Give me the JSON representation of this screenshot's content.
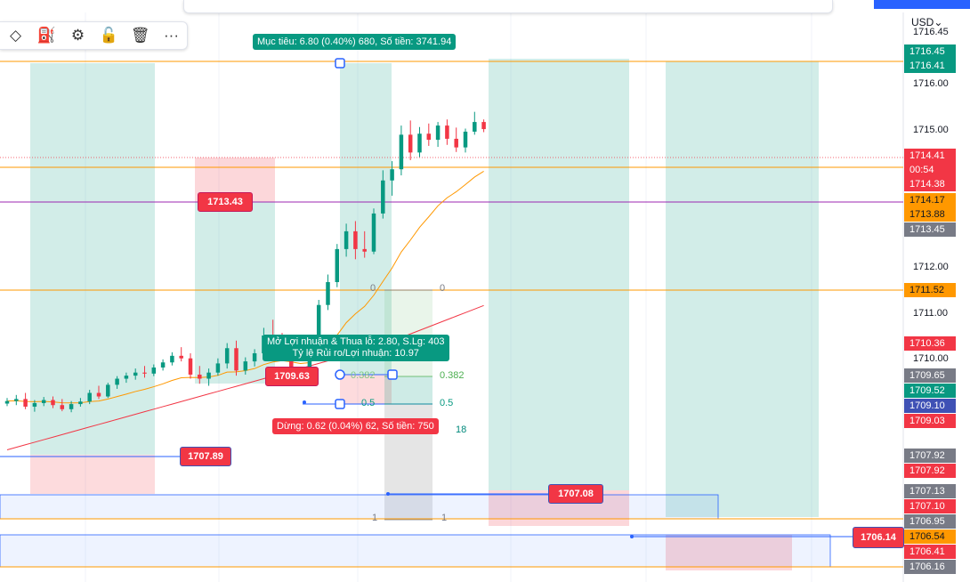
{
  "toolbar": {
    "icons": [
      "diamond-icon",
      "paint-bucket-icon",
      "gear-icon",
      "lock-open-icon",
      "trash-icon",
      "more-icon"
    ]
  },
  "currency_label": "USD",
  "currency_icon": "chevron-down-icon",
  "target_label": "Mục tiêu: 6.80 (0.40%) 680, Số tiền: 3741.94",
  "stop_label": "Dừng: 0.62 (0.04%) 62, Số tiền: 750",
  "position_info": {
    "line1": "Mở Lợi nhuận & Thua lỗ: 2.80, S.Lg: 403",
    "line2": "Tỷ lệ Rủi ro/Lợi nhuận: 10.97"
  },
  "chart_tags": {
    "t1713_43": "1713.43",
    "t1709_63": "1709.63",
    "t1707_89": "1707.89",
    "t1707_08": "1707.08",
    "t1706_14": "1706.14"
  },
  "fib_labels": {
    "zero_left": "0",
    "zero_right": "0",
    "f382_left": "0.382",
    "f382_right": "0.382",
    "f05_left": "0.5",
    "f05_right": "0.5",
    "f618_partial": "18",
    "one_left": "1",
    "one_right": "1"
  },
  "price_axis": {
    "top_partial": "1716.45",
    "labels": [
      "1716.00",
      "1715.00",
      "1712.00",
      "1711.00",
      "1710.00"
    ],
    "tags": [
      {
        "value": "1716.45",
        "color": "#089981"
      },
      {
        "value": "1716.41",
        "color": "#089981"
      },
      {
        "value": "1714.41",
        "color": "#f23645",
        "sub": "00:54"
      },
      {
        "value": "1714.38",
        "color": "#f23645"
      },
      {
        "value": "1714.17",
        "color": "#ff9800"
      },
      {
        "value": "1713.88",
        "color": "#ff9800"
      },
      {
        "value": "1713.45",
        "color": "#787b86"
      },
      {
        "value": "1711.52",
        "color": "#ff9800"
      },
      {
        "value": "1710.36",
        "color": "#f23645"
      },
      {
        "value": "1709.65",
        "color": "#787b86"
      },
      {
        "value": "1709.52",
        "color": "#089981"
      },
      {
        "value": "1709.10",
        "color": "#3f51b5"
      },
      {
        "value": "1709.03",
        "color": "#f23645"
      },
      {
        "value": "1707.92",
        "color": "#787b86"
      },
      {
        "value": "1707.92",
        "color": "#f23645"
      },
      {
        "value": "1707.13",
        "color": "#787b86"
      },
      {
        "value": "1707.10",
        "color": "#f23645"
      },
      {
        "value": "1706.95",
        "color": "#787b86"
      },
      {
        "value": "1706.54",
        "color": "#ff9800"
      },
      {
        "value": "1706.41",
        "color": "#f23645"
      },
      {
        "value": "1706.16",
        "color": "#787b86"
      }
    ]
  },
  "chart_data": {
    "type": "candlestick",
    "ylim": [
      1705.5,
      1716.6
    ],
    "candles": [
      {
        "o": 1709.01,
        "h": 1709.12,
        "l": 1708.96,
        "c": 1709.06
      },
      {
        "o": 1709.06,
        "h": 1709.18,
        "l": 1708.98,
        "c": 1709.1
      },
      {
        "o": 1709.1,
        "h": 1709.22,
        "l": 1708.9,
        "c": 1708.95
      },
      {
        "o": 1708.95,
        "h": 1709.08,
        "l": 1708.85,
        "c": 1709.02
      },
      {
        "o": 1709.02,
        "h": 1709.14,
        "l": 1708.96,
        "c": 1709.08
      },
      {
        "o": 1709.08,
        "h": 1709.15,
        "l": 1708.92,
        "c": 1708.98
      },
      {
        "o": 1708.98,
        "h": 1709.1,
        "l": 1708.86,
        "c": 1708.9
      },
      {
        "o": 1708.9,
        "h": 1709.06,
        "l": 1708.84,
        "c": 1709.0
      },
      {
        "o": 1709.0,
        "h": 1709.12,
        "l": 1708.95,
        "c": 1709.05
      },
      {
        "o": 1709.05,
        "h": 1709.28,
        "l": 1709.0,
        "c": 1709.22
      },
      {
        "o": 1709.22,
        "h": 1709.36,
        "l": 1709.1,
        "c": 1709.15
      },
      {
        "o": 1709.15,
        "h": 1709.42,
        "l": 1709.12,
        "c": 1709.38
      },
      {
        "o": 1709.38,
        "h": 1709.55,
        "l": 1709.3,
        "c": 1709.5
      },
      {
        "o": 1709.5,
        "h": 1709.62,
        "l": 1709.42,
        "c": 1709.56
      },
      {
        "o": 1709.56,
        "h": 1709.7,
        "l": 1709.48,
        "c": 1709.62
      },
      {
        "o": 1709.62,
        "h": 1709.75,
        "l": 1709.52,
        "c": 1709.6
      },
      {
        "o": 1709.6,
        "h": 1709.78,
        "l": 1709.55,
        "c": 1709.72
      },
      {
        "o": 1709.72,
        "h": 1709.88,
        "l": 1709.66,
        "c": 1709.82
      },
      {
        "o": 1709.82,
        "h": 1710.02,
        "l": 1709.76,
        "c": 1709.95
      },
      {
        "o": 1709.95,
        "h": 1710.12,
        "l": 1709.84,
        "c": 1709.9
      },
      {
        "o": 1709.9,
        "h": 1710.0,
        "l": 1709.5,
        "c": 1709.58
      },
      {
        "o": 1709.58,
        "h": 1709.75,
        "l": 1709.4,
        "c": 1709.5
      },
      {
        "o": 1709.5,
        "h": 1709.7,
        "l": 1709.36,
        "c": 1709.62
      },
      {
        "o": 1709.62,
        "h": 1709.9,
        "l": 1709.56,
        "c": 1709.8
      },
      {
        "o": 1709.8,
        "h": 1710.2,
        "l": 1709.7,
        "c": 1710.1
      },
      {
        "o": 1710.1,
        "h": 1710.25,
        "l": 1709.56,
        "c": 1709.66
      },
      {
        "o": 1709.66,
        "h": 1709.92,
        "l": 1709.58,
        "c": 1709.84
      },
      {
        "o": 1709.84,
        "h": 1710.08,
        "l": 1709.74,
        "c": 1710.0
      },
      {
        "o": 1710.0,
        "h": 1710.5,
        "l": 1709.9,
        "c": 1710.35
      },
      {
        "o": 1710.35,
        "h": 1710.66,
        "l": 1710.1,
        "c": 1710.2
      },
      {
        "o": 1710.2,
        "h": 1710.4,
        "l": 1709.9,
        "c": 1710.05
      },
      {
        "o": 1710.05,
        "h": 1710.15,
        "l": 1709.58,
        "c": 1709.66
      },
      {
        "o": 1709.66,
        "h": 1709.72,
        "l": 1709.45,
        "c": 1709.55
      },
      {
        "o": 1709.55,
        "h": 1710.05,
        "l": 1709.5,
        "c": 1709.95
      },
      {
        "o": 1709.95,
        "h": 1711.05,
        "l": 1709.9,
        "c": 1710.95
      },
      {
        "o": 1710.95,
        "h": 1711.55,
        "l": 1710.85,
        "c": 1711.4
      },
      {
        "o": 1711.4,
        "h": 1712.15,
        "l": 1711.3,
        "c": 1712.05
      },
      {
        "o": 1712.05,
        "h": 1712.55,
        "l": 1711.9,
        "c": 1712.4
      },
      {
        "o": 1712.4,
        "h": 1712.6,
        "l": 1711.85,
        "c": 1712.05
      },
      {
        "o": 1712.05,
        "h": 1712.4,
        "l": 1711.88,
        "c": 1712.0
      },
      {
        "o": 1712.0,
        "h": 1712.85,
        "l": 1711.95,
        "c": 1712.75
      },
      {
        "o": 1712.75,
        "h": 1713.6,
        "l": 1712.65,
        "c": 1713.4
      },
      {
        "o": 1713.4,
        "h": 1713.78,
        "l": 1713.1,
        "c": 1713.62
      },
      {
        "o": 1713.62,
        "h": 1714.48,
        "l": 1713.5,
        "c": 1714.3
      },
      {
        "o": 1714.3,
        "h": 1714.58,
        "l": 1713.8,
        "c": 1713.95
      },
      {
        "o": 1713.95,
        "h": 1714.45,
        "l": 1713.86,
        "c": 1714.32
      },
      {
        "o": 1714.32,
        "h": 1714.52,
        "l": 1714.08,
        "c": 1714.2
      },
      {
        "o": 1714.2,
        "h": 1714.55,
        "l": 1714.06,
        "c": 1714.48
      },
      {
        "o": 1714.48,
        "h": 1714.6,
        "l": 1714.1,
        "c": 1714.22
      },
      {
        "o": 1714.22,
        "h": 1714.44,
        "l": 1713.96,
        "c": 1714.05
      },
      {
        "o": 1714.05,
        "h": 1714.42,
        "l": 1713.95,
        "c": 1714.36
      },
      {
        "o": 1714.36,
        "h": 1714.75,
        "l": 1714.3,
        "c": 1714.55
      },
      {
        "o": 1714.55,
        "h": 1714.6,
        "l": 1714.35,
        "c": 1714.41
      }
    ],
    "colors": {
      "up": "#089981",
      "down": "#f23645",
      "ma_fast": "#ff9800",
      "ma_slow": "#f23645"
    }
  }
}
